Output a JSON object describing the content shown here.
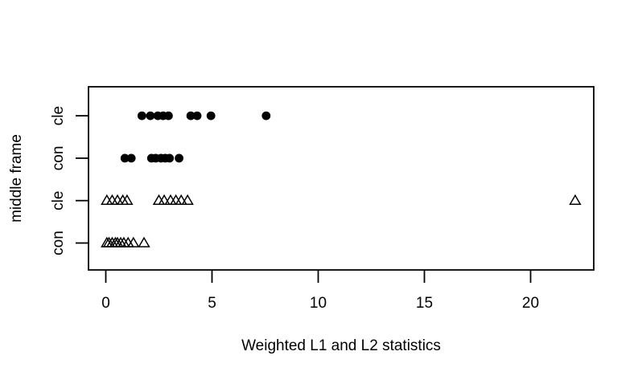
{
  "figure": {
    "background": "#ffffff",
    "foreground": "#000000"
  },
  "chart_data": {
    "type": "scatter",
    "subtype": "stripchart",
    "title": "",
    "xlabel": "Weighted L1 and L2 statistics",
    "ylabel": "middle frame",
    "x_ticks": [
      0,
      5,
      10,
      15,
      20
    ],
    "xlim": [
      -0.8,
      23.0
    ],
    "grid": false,
    "legend": "none",
    "marker_styles": {
      "triangle": {
        "shape": "open-triangle-up",
        "stroke": "#000000",
        "fill": "none"
      },
      "circle": {
        "shape": "filled-circle",
        "fill": "#000000"
      }
    },
    "y_categories": [
      {
        "label": "con",
        "marker": "triangle",
        "values": [
          0.05,
          0.15,
          0.3,
          0.45,
          0.55,
          0.7,
          0.85,
          1.05,
          1.3,
          1.8
        ]
      },
      {
        "label": "cle",
        "marker": "triangle",
        "values": [
          0.05,
          0.3,
          0.55,
          0.8,
          1.0,
          2.5,
          2.75,
          3.05,
          3.3,
          3.55,
          3.85,
          22.1
        ]
      },
      {
        "label": "con",
        "marker": "circle",
        "values": [
          0.9,
          1.2,
          2.15,
          2.35,
          2.6,
          2.8,
          3.0,
          3.45
        ]
      },
      {
        "label": "cle",
        "marker": "circle",
        "values": [
          1.7,
          2.1,
          2.45,
          2.7,
          2.95,
          4.0,
          4.3,
          4.95,
          7.55
        ]
      }
    ]
  }
}
